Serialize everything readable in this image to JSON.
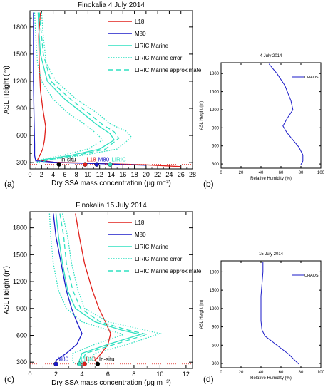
{
  "chart_data": [
    {
      "type": "line",
      "panel_label": "(a)",
      "title": "Finokalia  4 July 2014",
      "xlabel": "Dry SSA mass concentration (μg m⁻³)",
      "ylabel": "ASL Height (m)",
      "xlim": [
        0,
        28
      ],
      "ylim": [
        230,
        1980
      ],
      "xticks": [
        "0",
        "2",
        "4",
        "6",
        "8",
        "10",
        "12",
        "14",
        "16",
        "18",
        "20",
        "22",
        "24",
        "26",
        "28"
      ],
      "yticks": [
        "300",
        "600",
        "900",
        "1200",
        "1500",
        "1800"
      ],
      "legend_position": "top-right",
      "series": [
        {
          "name": "L18",
          "color": "#e0201b",
          "style": "solid",
          "points": [
            [
              1.8,
              1960
            ],
            [
              1.5,
              1700
            ],
            [
              1.6,
              1400
            ],
            [
              1.8,
              1100
            ],
            [
              2.2,
              900
            ],
            [
              2.7,
              700
            ],
            [
              2.5,
              550
            ],
            [
              2.2,
              450
            ],
            [
              1.7,
              380
            ],
            [
              1.3,
              330
            ],
            [
              4,
              305
            ],
            [
              12,
              290
            ],
            [
              20,
              275
            ],
            [
              26,
              255
            ]
          ]
        },
        {
          "name": "M80",
          "color": "#1a1ac8",
          "style": "solid",
          "points": [
            [
              0.6,
              1960
            ],
            [
              0.6,
              1600
            ],
            [
              0.6,
              1200
            ],
            [
              0.7,
              800
            ],
            [
              0.8,
              500
            ],
            [
              0.8,
              380
            ],
            [
              1.0,
              320
            ],
            [
              5,
              300
            ],
            [
              12,
              288
            ],
            [
              20,
              270
            ]
          ]
        },
        {
          "name": "LIRIC Marine",
          "color": "#2ee0c0",
          "style": "solid",
          "points": [
            [
              1.4,
              1960
            ],
            [
              1.5,
              1800
            ],
            [
              1.8,
              1500
            ],
            [
              3,
              1200
            ],
            [
              6,
              1000
            ],
            [
              9,
              850
            ],
            [
              11.5,
              720
            ],
            [
              13.8,
              620
            ],
            [
              14.5,
              550
            ],
            [
              12,
              450
            ],
            [
              7,
              380
            ],
            [
              2,
              330
            ],
            [
              1.5,
              300
            ]
          ]
        },
        {
          "name": "LIRIC Marine error",
          "color": "#2ee0c0",
          "style": "dotted",
          "points": [
            [
              [
                0.8,
                1960
              ],
              [
                1.0,
                1700
              ],
              [
                1.3,
                1400
              ],
              [
                2,
                1200
              ],
              [
                4,
                1000
              ],
              [
                6.5,
                850
              ],
              [
                9.5,
                720
              ],
              [
                11.5,
                620
              ],
              [
                12.5,
                550
              ],
              [
                10,
                450
              ],
              [
                5.5,
                380
              ],
              [
                1.5,
                330
              ],
              [
                1.2,
                300
              ]
            ],
            [
              [
                2,
                1960
              ],
              [
                2.3,
                1700
              ],
              [
                2.8,
                1400
              ],
              [
                4.5,
                1200
              ],
              [
                8,
                1000
              ],
              [
                11.5,
                850
              ],
              [
                14,
                720
              ],
              [
                16.5,
                650
              ],
              [
                17.5,
                580
              ],
              [
                15,
                450
              ],
              [
                9,
                380
              ],
              [
                3,
                330
              ],
              [
                2,
                300
              ]
            ]
          ]
        },
        {
          "name": "LIRIC Marine approximate",
          "color": "#2ee0c0",
          "style": "dashed",
          "points": [
            [
              1.6,
              1960
            ],
            [
              2,
              1700
            ],
            [
              2.3,
              1500
            ],
            [
              3.6,
              1200
            ],
            [
              7,
              1000
            ],
            [
              10,
              850
            ],
            [
              12.5,
              720
            ],
            [
              14.5,
              640
            ],
            [
              15.3,
              570
            ],
            [
              13,
              450
            ],
            [
              8,
              380
            ],
            [
              3,
              330
            ],
            [
              2,
              300
            ]
          ]
        }
      ],
      "in_situ": [
        {
          "label": "In-situ",
          "x": 5,
          "y": 280,
          "color": "#000000"
        },
        {
          "label": "L18",
          "x": 9.5,
          "y": 280,
          "color": "#e0201b"
        },
        {
          "label": "M80",
          "x": 11.5,
          "y": 280,
          "color": "#1a1ac8"
        },
        {
          "label": "LIRIC",
          "x": 13.8,
          "y": 280,
          "color": "#2ee0c0"
        }
      ]
    },
    {
      "type": "line",
      "panel_label": "(b)",
      "title": "4 July 2014",
      "xlabel": "Relative Humidity (%)",
      "ylabel": "ASL Height (m)",
      "xlim": [
        0,
        100
      ],
      "ylim": [
        230,
        1980
      ],
      "xticks": [
        "0",
        "20",
        "40",
        "60",
        "80",
        "100"
      ],
      "yticks": [
        "300",
        "600",
        "900",
        "1200",
        "1500",
        "1800"
      ],
      "legend_position": "top-right",
      "series": [
        {
          "name": "CHAOS",
          "color": "#1a1ac8",
          "style": "solid",
          "points": [
            [
              48,
              1960
            ],
            [
              56,
              1800
            ],
            [
              64,
              1600
            ],
            [
              70,
              1350
            ],
            [
              72,
              1200
            ],
            [
              66,
              1050
            ],
            [
              62,
              930
            ],
            [
              66,
              820
            ],
            [
              72,
              700
            ],
            [
              78,
              580
            ],
            [
              82,
              450
            ],
            [
              82,
              350
            ],
            [
              80,
              290
            ]
          ]
        }
      ]
    },
    {
      "type": "line",
      "panel_label": "(c)",
      "title": "Finokalia  15 July 2014",
      "xlabel": "Dry SSA mass concentration (μg m⁻³)",
      "ylabel": "ASL Height (m)",
      "xlim": [
        0,
        12.5
      ],
      "ylim": [
        230,
        1980
      ],
      "xticks": [
        "0",
        "2",
        "4",
        "6",
        "8",
        "10",
        "12"
      ],
      "yticks": [
        "300",
        "600",
        "900",
        "1200",
        "1500",
        "1800"
      ],
      "legend_position": "top-right",
      "series": [
        {
          "name": "L18",
          "color": "#e0201b",
          "style": "solid",
          "points": [
            [
              3.5,
              1960
            ],
            [
              3.8,
              1700
            ],
            [
              4.2,
              1400
            ],
            [
              4.8,
              1100
            ],
            [
              5.3,
              900
            ],
            [
              5.8,
              750
            ],
            [
              6.2,
              620
            ],
            [
              6.0,
              500
            ],
            [
              5.5,
              400
            ],
            [
              5.0,
              320
            ],
            [
              5.2,
              285
            ]
          ]
        },
        {
          "name": "M80",
          "color": "#1a1ac8",
          "style": "solid",
          "points": [
            [
              1.8,
              1960
            ],
            [
              2.0,
              1700
            ],
            [
              2.4,
              1400
            ],
            [
              2.8,
              1100
            ],
            [
              3.2,
              900
            ],
            [
              3.6,
              750
            ],
            [
              4.0,
              620
            ],
            [
              3.6,
              500
            ],
            [
              2.8,
              400
            ],
            [
              2.0,
              320
            ],
            [
              2.0,
              285
            ]
          ]
        },
        {
          "name": "LIRIC Marine",
          "color": "#2ee0c0",
          "style": "solid",
          "points": [
            [
              2.0,
              1960
            ],
            [
              2.2,
              1700
            ],
            [
              2.5,
              1400
            ],
            [
              2.9,
              1100
            ],
            [
              3.5,
              900
            ],
            [
              5,
              750
            ],
            [
              7,
              660
            ],
            [
              8.5,
              610
            ],
            [
              6,
              500
            ],
            [
              4,
              400
            ],
            [
              3.8,
              320
            ],
            [
              3.8,
              285
            ]
          ]
        },
        {
          "name": "LIRIC Marine error",
          "color": "#2ee0c0",
          "style": "dotted",
          "points": [
            [
              [
                1.5,
                1960
              ],
              [
                1.6,
                1700
              ],
              [
                1.8,
                1400
              ],
              [
                2.2,
                1100
              ],
              [
                2.8,
                900
              ],
              [
                4,
                750
              ],
              [
                6,
                660
              ],
              [
                7.2,
                610
              ],
              [
                5,
                500
              ],
              [
                3.3,
                400
              ],
              [
                3.3,
                320
              ],
              [
                3.4,
                285
              ]
            ],
            [
              [
                2.5,
                1960
              ],
              [
                2.9,
                1700
              ],
              [
                3.2,
                1400
              ],
              [
                3.7,
                1100
              ],
              [
                4.2,
                900
              ],
              [
                6,
                750
              ],
              [
                8.5,
                670
              ],
              [
                10,
                620
              ],
              [
                7.5,
                500
              ],
              [
                5,
                400
              ],
              [
                4.5,
                320
              ],
              [
                4.5,
                285
              ]
            ]
          ]
        },
        {
          "name": "LIRIC Marine approximate",
          "color": "#2ee0c0",
          "style": "dashed",
          "points": [
            [
              2.3,
              1960
            ],
            [
              2.6,
              1700
            ],
            [
              2.8,
              1400
            ],
            [
              3.3,
              1100
            ],
            [
              3.9,
              900
            ],
            [
              5.4,
              750
            ],
            [
              7.5,
              660
            ],
            [
              9,
              610
            ],
            [
              6.5,
              500
            ],
            [
              4.3,
              400
            ],
            [
              4,
              320
            ],
            [
              4,
              285
            ]
          ]
        }
      ],
      "in_situ": [
        {
          "label": "M80",
          "x": 2.0,
          "y": 280,
          "color": "#1a1ac8"
        },
        {
          "label": "LIRIC",
          "x": 3.8,
          "y": 280,
          "color": "#2ee0c0"
        },
        {
          "label": "L18",
          "x": 4.2,
          "y": 280,
          "color": "#e0201b"
        },
        {
          "label": "In-situ",
          "x": 5.2,
          "y": 280,
          "color": "#000000"
        }
      ]
    },
    {
      "type": "line",
      "panel_label": "(d)",
      "title": "15 July 2014",
      "xlabel": "Relative Humidity (%)",
      "ylabel": "ASL Height (m)",
      "xlim": [
        0,
        100
      ],
      "ylim": [
        230,
        1980
      ],
      "xticks": [
        "0",
        "20",
        "40",
        "60",
        "80",
        "100"
      ],
      "yticks": [
        "300",
        "600",
        "900",
        "1200",
        "1500",
        "1800"
      ],
      "legend_position": "top-right",
      "series": [
        {
          "name": "CHAOS",
          "color": "#1a1ac8",
          "style": "solid",
          "points": [
            [
              42,
              1960
            ],
            [
              42,
              1800
            ],
            [
              41,
              1600
            ],
            [
              40,
              1400
            ],
            [
              40,
              1200
            ],
            [
              40,
              1000
            ],
            [
              41,
              850
            ],
            [
              44,
              750
            ],
            [
              52,
              650
            ],
            [
              60,
              550
            ],
            [
              68,
              450
            ],
            [
              74,
              350
            ],
            [
              78,
              290
            ]
          ]
        }
      ]
    }
  ]
}
